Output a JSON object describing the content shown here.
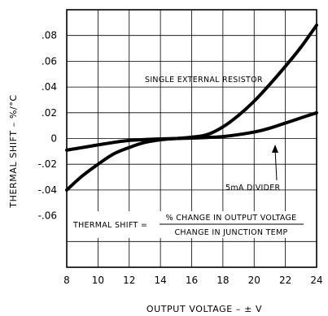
{
  "chart_data": {
    "type": "line",
    "xlabel": "OUTPUT VOLTAGE – ± V",
    "ylabel": "THERMAL SHIFT – %/°C",
    "xlim": [
      8,
      24
    ],
    "ylim": [
      -0.1,
      0.1
    ],
    "x_ticks": [
      8,
      10,
      12,
      14,
      16,
      18,
      20,
      22,
      24
    ],
    "x_tick_labels": [
      "8",
      "10",
      "12",
      "14",
      "16",
      "18",
      "20",
      "22",
      "24"
    ],
    "y_ticks": [
      0.08,
      0.06,
      0.04,
      0.02,
      0,
      -0.02,
      -0.04,
      -0.06
    ],
    "y_tick_labels": [
      ".08",
      ".06",
      ".04",
      ".02",
      "0",
      "-.02",
      "-.04",
      "-.06"
    ],
    "grid": true,
    "series": [
      {
        "name": "SINGLE EXTERNAL RESISTOR",
        "x": [
          8,
          9,
          10,
          11,
          12,
          13,
          14,
          15,
          16,
          17,
          18,
          19,
          20,
          21,
          22,
          23,
          24
        ],
        "y": [
          -0.04,
          -0.029,
          -0.02,
          -0.012,
          -0.007,
          -0.003,
          -0.001,
          0,
          0.001,
          0.003,
          0.009,
          0.018,
          0.029,
          0.042,
          0.056,
          0.071,
          0.088
        ]
      },
      {
        "name": "5mA DIVIDER",
        "x": [
          8,
          9,
          10,
          11,
          12,
          13,
          14,
          15,
          16,
          17,
          18,
          19,
          20,
          21,
          22,
          23,
          24
        ],
        "y": [
          -0.009,
          -0.007,
          -0.005,
          -0.003,
          -0.0015,
          -0.0008,
          -0.0003,
          0,
          0.0003,
          0.0008,
          0.0015,
          0.003,
          0.005,
          0.008,
          0.012,
          0.016,
          0.02
        ]
      }
    ],
    "annotation": {
      "lhs": "THERMAL SHIFT =",
      "numerator": "% CHANGE IN OUTPUT VOLTAGE",
      "denominator": "CHANGE IN JUNCTION TEMP"
    }
  }
}
